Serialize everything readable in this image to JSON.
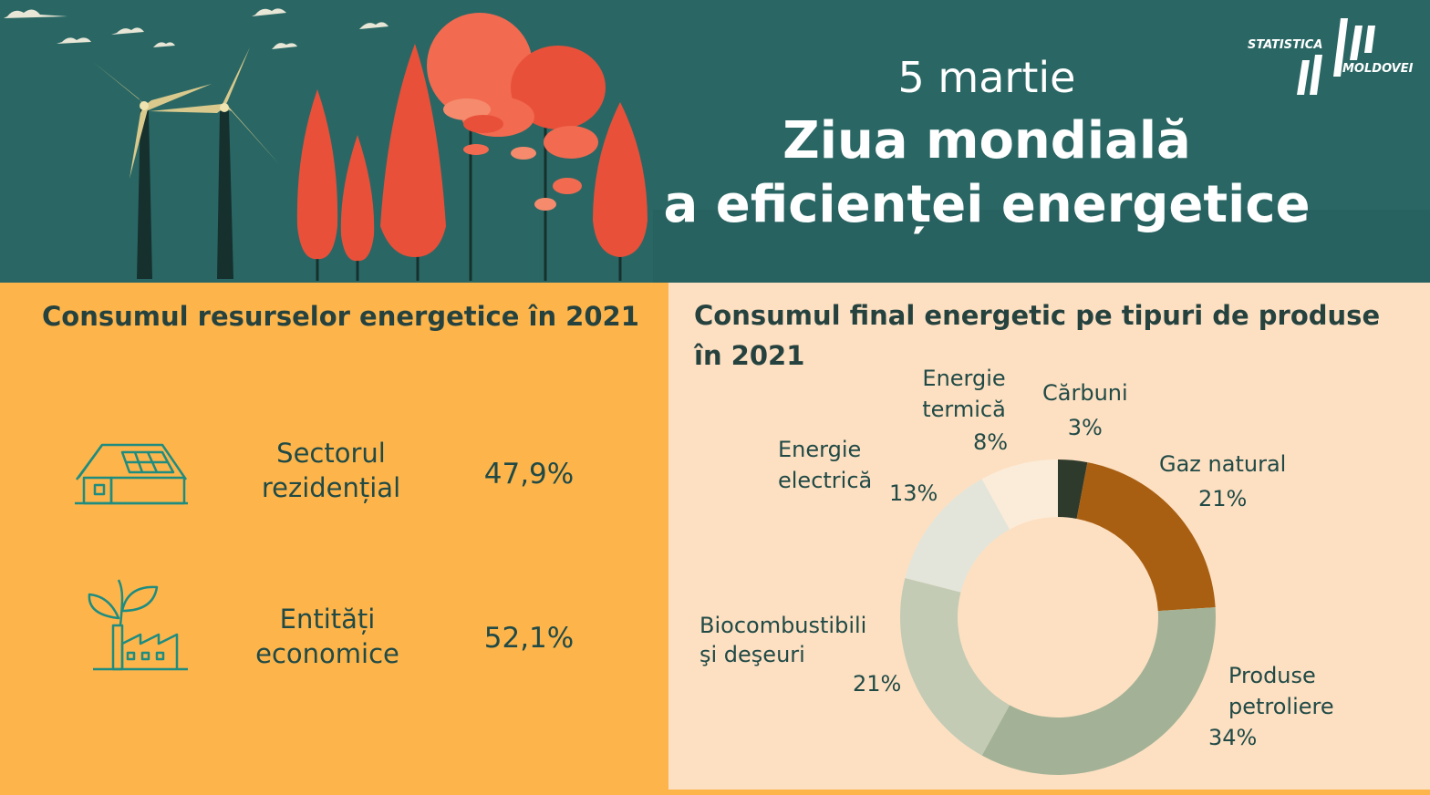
{
  "header": {
    "date": "5 martie",
    "title_line1": "Ziua mondială",
    "title_line2": "a eficienței energetice",
    "logo_line1": "STATISTICA",
    "logo_line2": "MOLDOVEI"
  },
  "resources": {
    "title": "Consumul resurselor energetice în 2021",
    "items": [
      {
        "label_line1": "Sectorul",
        "label_line2": "rezidențial",
        "value": "47,9%",
        "icon": "house-solar-panel-icon"
      },
      {
        "label_line1": "Entități",
        "label_line2": "economice",
        "value": "52,1%",
        "icon": "factory-plant-icon"
      }
    ]
  },
  "chart_data": {
    "type": "pie",
    "title": "Consumul final energetic pe tipuri de produse în 2021",
    "slices": [
      {
        "name": "Cărbuni",
        "name_line1": "Cărbuni",
        "name_line2": "",
        "value": 3,
        "label": "3%",
        "color": "#2e3a2c"
      },
      {
        "name": "Gaz natural",
        "name_line1": "Gaz natural",
        "name_line2": "",
        "value": 21,
        "label": "21%",
        "color": "#a85f12"
      },
      {
        "name": "Produse petroliere",
        "name_line1": "Produse",
        "name_line2": "petroliere",
        "value": 34,
        "label": "34%",
        "color": "#a3b296"
      },
      {
        "name": "Biocombustibili şi deşeuri",
        "name_line1": "Biocombustibili",
        "name_line2": "şi deşeuri",
        "value": 21,
        "label": "21%",
        "color": "#c3cbb5"
      },
      {
        "name": "Energie electrică",
        "name_line1": "Energie",
        "name_line2": "electrică",
        "value": 13,
        "label": "13%",
        "color": "#e3e5da"
      },
      {
        "name": "Energie termică",
        "name_line1": "Energie",
        "name_line2": "termică",
        "value": 8,
        "label": "8%",
        "color": "#fbecd9"
      }
    ]
  }
}
